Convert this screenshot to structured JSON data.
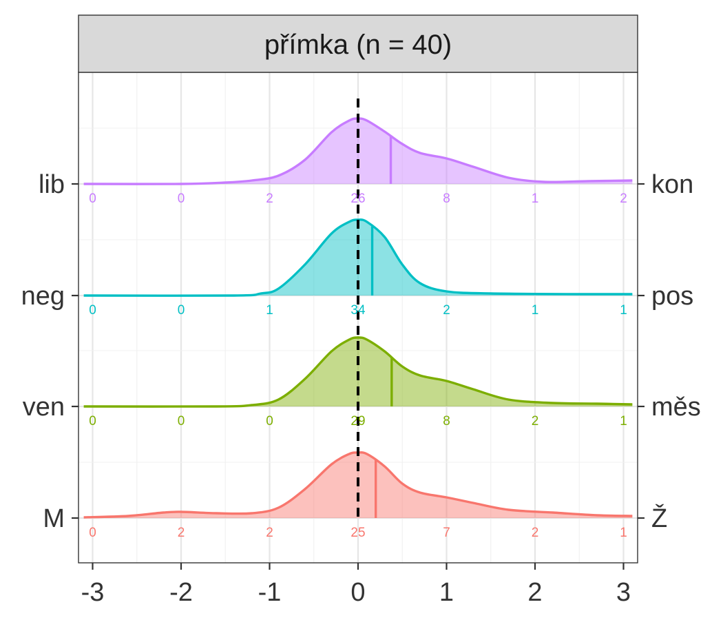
{
  "chart_data": {
    "type": "ridgeline-density",
    "panel_title": "přímka (n = 40)",
    "x_ticks": [
      "-3",
      "-2",
      "-1",
      "0",
      "1",
      "2",
      "3"
    ],
    "xlim": [
      -3.1,
      3.1
    ],
    "reference_line_x": 0,
    "grid": true,
    "count_positions": [
      -3,
      -2,
      -1,
      0,
      1,
      2,
      3
    ],
    "series": [
      {
        "left_label": "M",
        "right_label": "Ž",
        "color": "#F8766D",
        "median": 0.2,
        "counts": [
          "0",
          "2",
          "2",
          "25",
          "7",
          "2",
          "1"
        ],
        "density": [
          [
            -3.1,
            0.01
          ],
          [
            -2.6,
            0.03
          ],
          [
            -2.2,
            0.08
          ],
          [
            -2.0,
            0.09
          ],
          [
            -1.6,
            0.07
          ],
          [
            -1.2,
            0.07
          ],
          [
            -0.9,
            0.15
          ],
          [
            -0.6,
            0.42
          ],
          [
            -0.3,
            0.78
          ],
          [
            -0.1,
            0.93
          ],
          [
            0.0,
            0.95
          ],
          [
            0.1,
            0.93
          ],
          [
            0.3,
            0.75
          ],
          [
            0.5,
            0.5
          ],
          [
            0.7,
            0.37
          ],
          [
            1.0,
            0.3
          ],
          [
            1.3,
            0.22
          ],
          [
            1.7,
            0.12
          ],
          [
            2.2,
            0.08
          ],
          [
            2.7,
            0.04
          ],
          [
            3.1,
            0.03
          ]
        ]
      },
      {
        "left_label": "ven",
        "right_label": "měs",
        "color": "#7CAE00",
        "median": 0.38,
        "counts": [
          "0",
          "0",
          "0",
          "29",
          "8",
          "2",
          "1"
        ],
        "density": [
          [
            -3.1,
            0.0
          ],
          [
            -1.6,
            0.0
          ],
          [
            -1.2,
            0.02
          ],
          [
            -0.9,
            0.1
          ],
          [
            -0.6,
            0.4
          ],
          [
            -0.3,
            0.8
          ],
          [
            -0.1,
            0.97
          ],
          [
            0.0,
            1.0
          ],
          [
            0.1,
            0.97
          ],
          [
            0.3,
            0.8
          ],
          [
            0.5,
            0.58
          ],
          [
            0.7,
            0.45
          ],
          [
            1.0,
            0.37
          ],
          [
            1.3,
            0.25
          ],
          [
            1.7,
            0.1
          ],
          [
            2.2,
            0.05
          ],
          [
            2.7,
            0.04
          ],
          [
            3.1,
            0.03
          ]
        ]
      },
      {
        "left_label": "neg",
        "right_label": "pos",
        "color": "#00BFC4",
        "median": 0.16,
        "counts": [
          "0",
          "0",
          "1",
          "34",
          "2",
          "1",
          "1"
        ],
        "density": [
          [
            -3.1,
            0.0
          ],
          [
            -1.4,
            0.0
          ],
          [
            -1.1,
            0.03
          ],
          [
            -0.9,
            0.1
          ],
          [
            -0.6,
            0.45
          ],
          [
            -0.3,
            0.9
          ],
          [
            -0.1,
            1.07
          ],
          [
            0.0,
            1.1
          ],
          [
            0.1,
            1.07
          ],
          [
            0.3,
            0.85
          ],
          [
            0.5,
            0.45
          ],
          [
            0.7,
            0.18
          ],
          [
            1.0,
            0.06
          ],
          [
            1.5,
            0.03
          ],
          [
            2.5,
            0.02
          ],
          [
            3.1,
            0.02
          ]
        ]
      },
      {
        "left_label": "lib",
        "right_label": "kon",
        "color": "#C77CFF",
        "median": 0.37,
        "counts": [
          "0",
          "0",
          "2",
          "26",
          "8",
          "1",
          "2"
        ],
        "density": [
          [
            -3.1,
            0.0
          ],
          [
            -2.0,
            0.0
          ],
          [
            -1.5,
            0.02
          ],
          [
            -1.2,
            0.05
          ],
          [
            -0.9,
            0.12
          ],
          [
            -0.6,
            0.35
          ],
          [
            -0.3,
            0.75
          ],
          [
            -0.1,
            0.92
          ],
          [
            0.0,
            0.95
          ],
          [
            0.1,
            0.92
          ],
          [
            0.3,
            0.76
          ],
          [
            0.5,
            0.58
          ],
          [
            0.7,
            0.45
          ],
          [
            1.0,
            0.37
          ],
          [
            1.3,
            0.25
          ],
          [
            1.7,
            0.09
          ],
          [
            2.1,
            0.03
          ],
          [
            2.6,
            0.04
          ],
          [
            3.1,
            0.05
          ]
        ]
      }
    ]
  }
}
